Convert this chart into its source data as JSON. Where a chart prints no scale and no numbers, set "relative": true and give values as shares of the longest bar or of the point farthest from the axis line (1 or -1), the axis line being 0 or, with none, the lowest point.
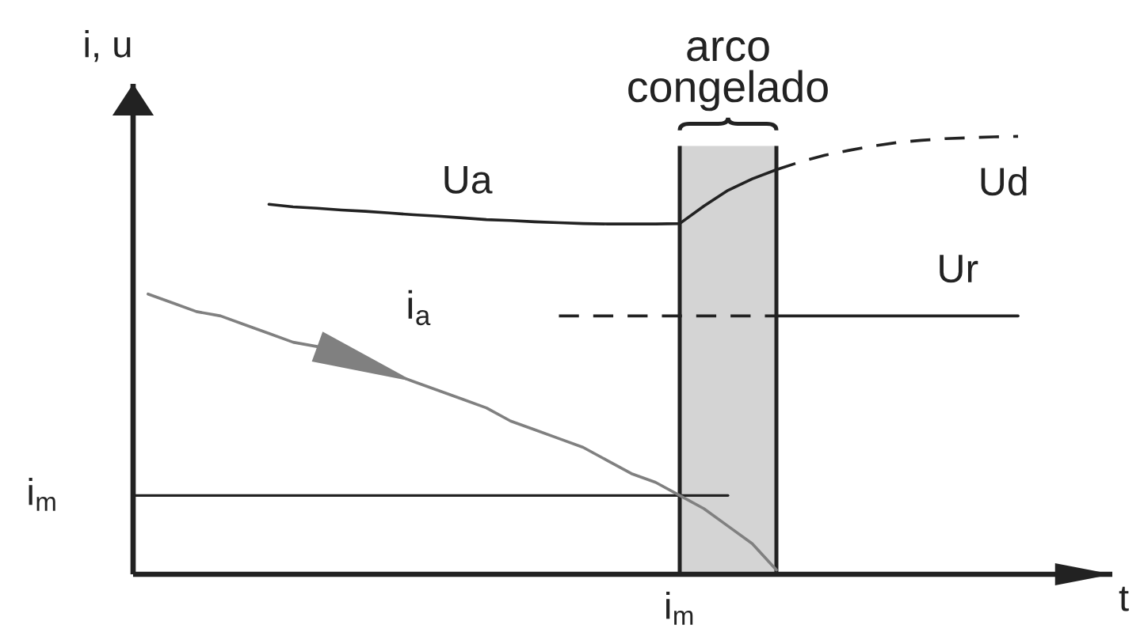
{
  "chart_data": {
    "type": "line",
    "relative": true,
    "ylabel": "i, u",
    "xlabel": "t",
    "categories": [
      null,
      null,
      null,
      null,
      null,
      null,
      null,
      null,
      null,
      null,
      null,
      null,
      null,
      null,
      null,
      null,
      null,
      null,
      null,
      null,
      null,
      null,
      null,
      null,
      null,
      null,
      null,
      null,
      null,
      null,
      null,
      null,
      null,
      null,
      null,
      null,
      null
    ],
    "series": [
      {
        "name": "i$_{a}$",
        "color": "#808080",
        "values": [
          0.64,
          0.62,
          0.6,
          0.59,
          0.57,
          0.55,
          0.53,
          0.52,
          null,
          null,
          null,
          0.44,
          0.42,
          0.4,
          0.38,
          0.35,
          0.33,
          0.31,
          0.29,
          0.26,
          0.23,
          0.21,
          0.18,
          0.15,
          0.11,
          0.07,
          0.01,
          null,
          null,
          null,
          null,
          null,
          null,
          null,
          null,
          null,
          null
        ]
      },
      {
        "name": "Ua",
        "color": "#222222",
        "values": [
          null,
          null,
          null,
          null,
          null,
          0.845,
          0.839,
          0.836,
          0.832,
          0.829,
          0.825,
          0.821,
          0.818,
          0.814,
          0.81,
          0.808,
          0.805,
          0.803,
          0.801,
          0.8,
          0.8,
          0.8,
          0.801,
          0.841,
          0.877,
          0.903,
          0.924,
          null,
          null,
          null,
          null,
          null,
          null,
          null,
          null,
          null,
          null
        ]
      },
      {
        "name": "Ud",
        "color": "#222222",
        "line_style": "dashed",
        "values": [
          null,
          null,
          null,
          null,
          null,
          null,
          null,
          null,
          null,
          null,
          null,
          null,
          null,
          null,
          null,
          null,
          null,
          null,
          null,
          null,
          null,
          null,
          null,
          null,
          null,
          null,
          0.924,
          0.942,
          0.957,
          0.968,
          0.978,
          0.986,
          0.991,
          0.995,
          0.997,
          0.999,
          1.0
        ]
      },
      {
        "color": "#222222",
        "line_style": "dashed",
        "values": [
          null,
          null,
          null,
          null,
          null,
          null,
          null,
          null,
          null,
          null,
          null,
          null,
          null,
          null,
          null,
          null,
          null,
          0.59,
          0.59,
          0.59,
          0.59,
          0.59,
          0.59,
          0.59,
          0.59,
          0.59,
          0.59,
          null,
          null,
          null,
          null,
          null,
          null,
          null,
          null,
          null,
          null
        ]
      },
      {
        "name": "Ur",
        "color": "#222222",
        "values": [
          null,
          null,
          null,
          null,
          null,
          null,
          null,
          null,
          null,
          null,
          null,
          null,
          null,
          null,
          null,
          null,
          null,
          null,
          null,
          null,
          null,
          null,
          null,
          null,
          null,
          null,
          0.59,
          0.59,
          0.59,
          0.59,
          0.59,
          0.59,
          0.59,
          0.59,
          0.59,
          0.59,
          0.59
        ]
      }
    ],
    "ref_lines": [
      {
        "axis": "y",
        "value": 0.18,
        "label": "i$_{m}$"
      }
    ],
    "annotations": [
      "arco\ncongelado",
      "i$_{m}$"
    ]
  }
}
